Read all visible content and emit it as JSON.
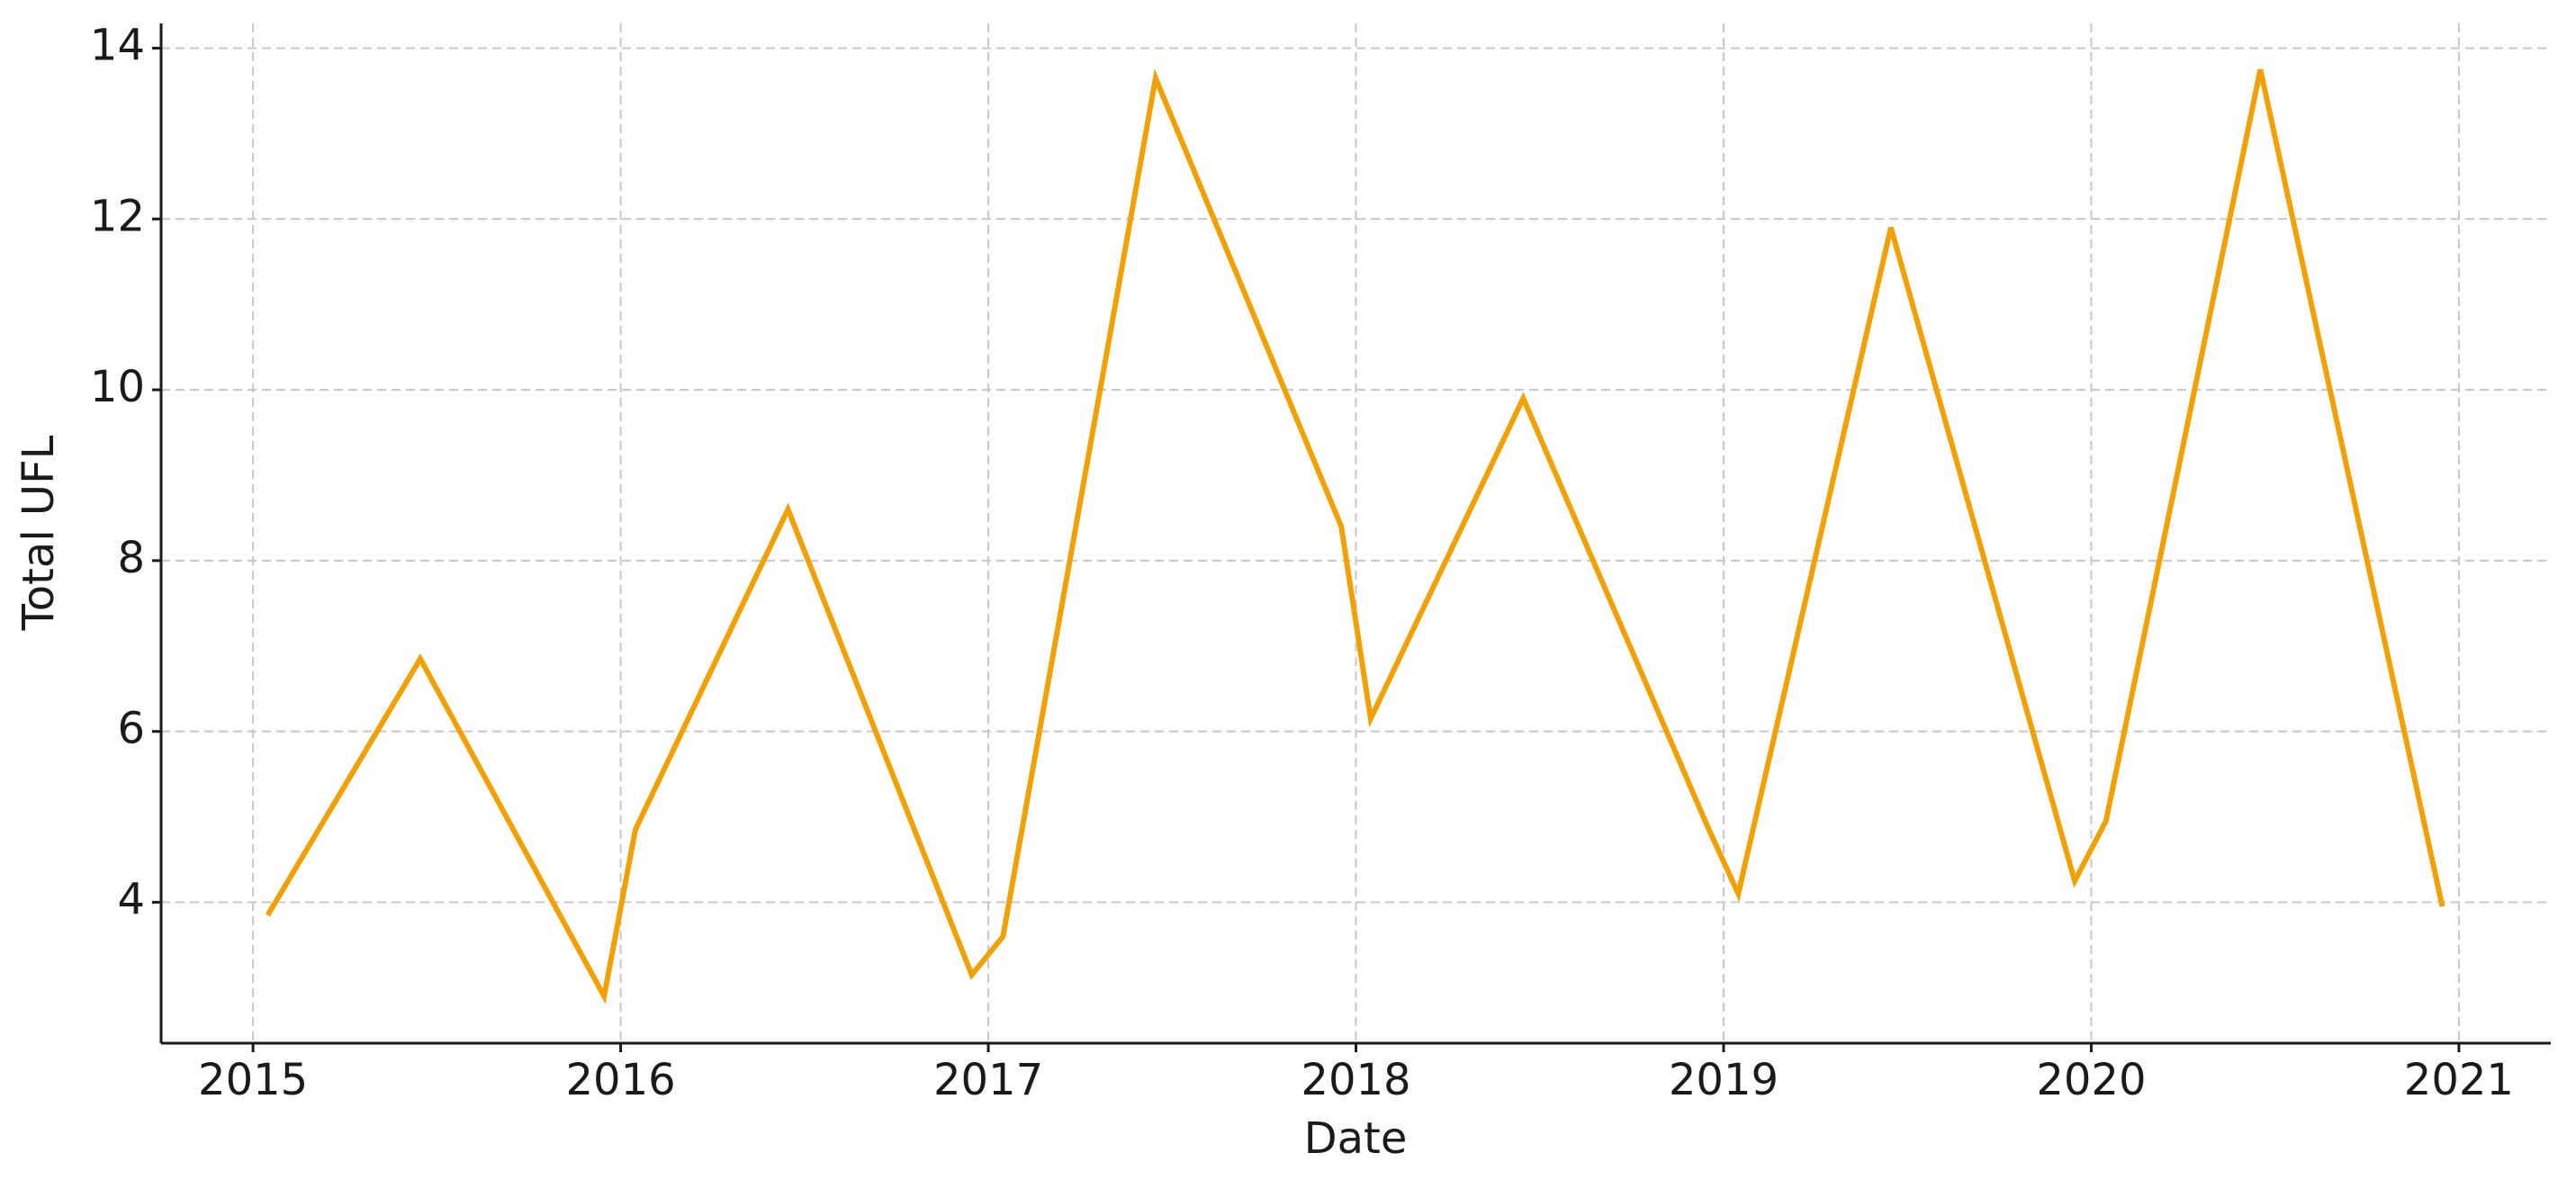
{
  "chart_data": {
    "type": "line",
    "x_label": "Date",
    "y_label": "Total UFL",
    "x": [
      2015.04,
      2015.455,
      2015.955,
      2016.04,
      2016.455,
      2016.955,
      2017.04,
      2017.455,
      2017.96,
      2018.04,
      2018.455,
      2018.955,
      2019.04,
      2019.455,
      2019.955,
      2020.04,
      2020.46,
      2020.955
    ],
    "series": [
      {
        "name": "Total UFL",
        "color": "#f2a104",
        "values": [
          3.85,
          6.85,
          2.9,
          4.85,
          8.6,
          3.15,
          3.6,
          13.65,
          8.4,
          6.15,
          9.9,
          4.9,
          4.1,
          11.9,
          4.25,
          4.95,
          13.75,
          3.95
        ]
      }
    ],
    "xlim": [
      2014.75,
      2021.25
    ],
    "xticks": [
      2015,
      2016,
      2017,
      2018,
      2019,
      2020,
      2021
    ],
    "ylim": [
      2.35,
      14.29
    ],
    "yticks": [
      4,
      6,
      8,
      10,
      12,
      14
    ],
    "grid": true
  }
}
